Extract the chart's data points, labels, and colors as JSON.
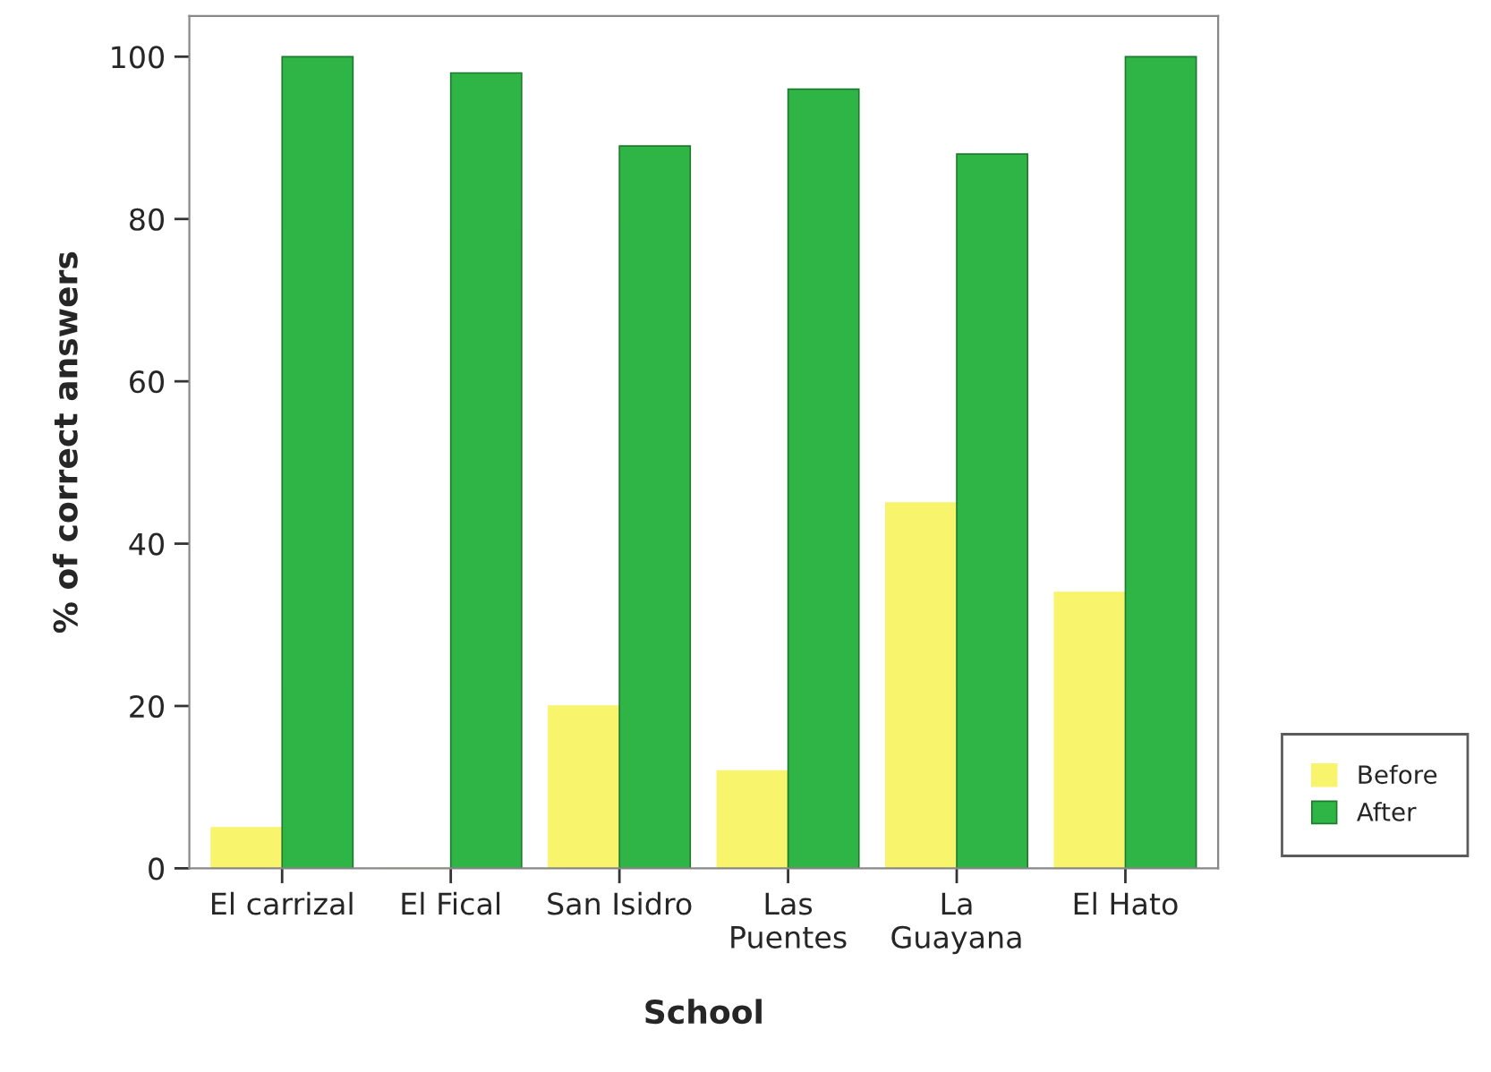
{
  "chart_data": {
    "type": "bar",
    "xlabel": "School",
    "ylabel": "% of correct answers",
    "categories": [
      "El carrizal",
      "El Fical",
      "San Isidro",
      "Las\nPuentes",
      "La\nGuayana",
      "El Hato"
    ],
    "series": [
      {
        "name": "Before",
        "color": "#f8f46c",
        "values": [
          5,
          0,
          20,
          12,
          45,
          34
        ]
      },
      {
        "name": "After",
        "color": "#2fb545",
        "values": [
          100,
          98,
          89,
          96,
          88,
          100
        ]
      }
    ],
    "ylim": [
      0,
      105
    ],
    "yticks": [
      0,
      20,
      40,
      60,
      80,
      100
    ],
    "grid": false,
    "legend": "right"
  }
}
